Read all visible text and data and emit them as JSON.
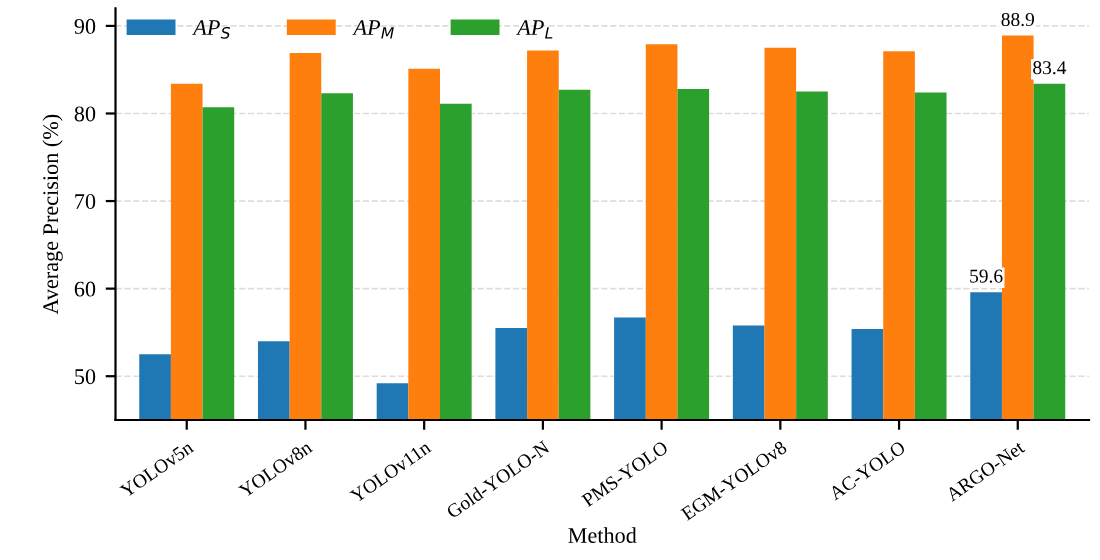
{
  "chart_data": {
    "type": "bar",
    "xlabel": "Method",
    "ylabel": "Average Precision (%)",
    "categories": [
      "YOLOv5n",
      "YOLOv8n",
      "YOLOv11n",
      "Gold-YOLO-N",
      "PMS-YOLO",
      "EGM-YOLOv8",
      "AC-YOLO",
      "ARGO-Net"
    ],
    "series": [
      {
        "name": "AP$_{S}$",
        "color": "#1f77b4",
        "values": [
          52.5,
          54.0,
          49.2,
          55.5,
          56.7,
          55.8,
          55.4,
          59.6
        ],
        "value_labels": [
          null,
          null,
          null,
          null,
          null,
          null,
          null,
          "59.6"
        ]
      },
      {
        "name": "AP$_{M}$",
        "color": "#ff7f0e",
        "values": [
          83.4,
          86.9,
          85.1,
          87.2,
          87.9,
          87.5,
          87.1,
          88.9
        ],
        "value_labels": [
          null,
          null,
          null,
          null,
          null,
          null,
          null,
          "88.9"
        ]
      },
      {
        "name": "AP$_{L}$",
        "color": "#2ca02c",
        "values": [
          80.7,
          82.3,
          81.1,
          82.7,
          82.8,
          82.5,
          82.4,
          83.4
        ],
        "value_labels": [
          null,
          null,
          null,
          null,
          null,
          null,
          null,
          "83.4"
        ]
      }
    ],
    "ylim": [
      45,
      92
    ],
    "yticks": [
      50,
      60,
      70,
      80,
      90
    ],
    "grid": "y",
    "legend": "top left"
  }
}
